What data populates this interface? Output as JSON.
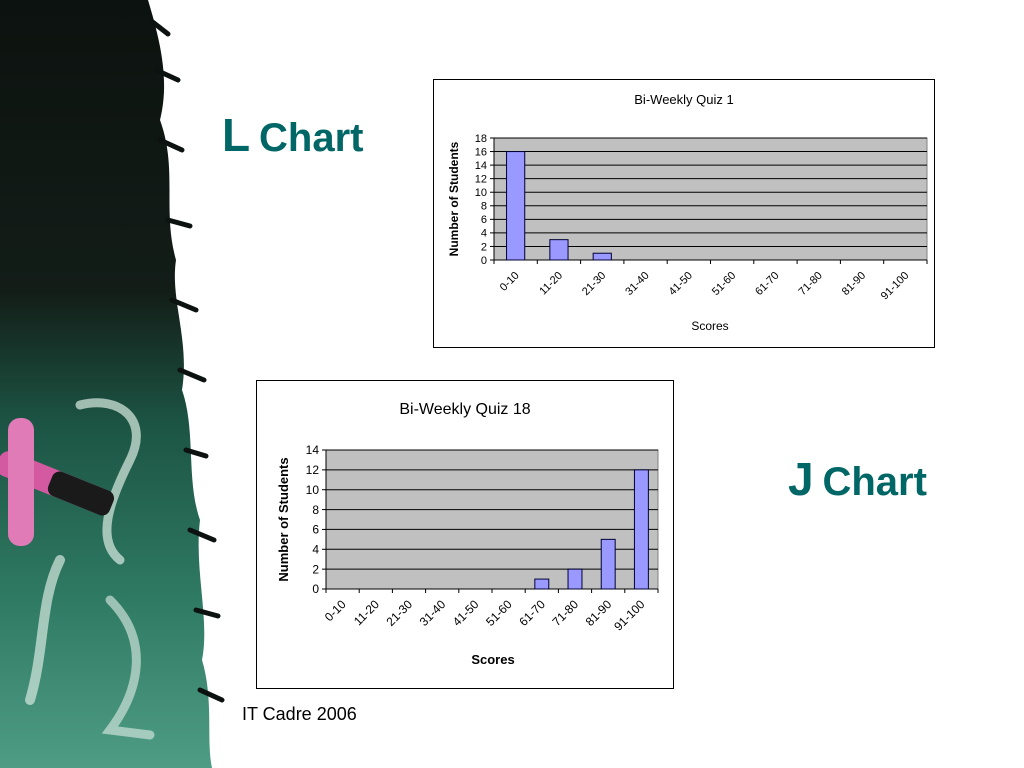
{
  "slide": {
    "title_l": {
      "letter": "L",
      "rest": "Chart"
    },
    "title_j": {
      "letter": "J",
      "rest": "Chart"
    },
    "footer": "IT Cadre 2006",
    "title_color": "#006666"
  },
  "chart_data": [
    {
      "type": "bar",
      "title": "Bi-Weekly Quiz 1",
      "xlabel": "Scores",
      "ylabel": "Number of Students",
      "categories": [
        "0-10",
        "11-20",
        "21-30",
        "31-40",
        "41-50",
        "51-60",
        "61-70",
        "71-80",
        "81-90",
        "91-100"
      ],
      "values": [
        16,
        3,
        1,
        0,
        0,
        0,
        0,
        0,
        0,
        0
      ],
      "ylim": [
        0,
        18
      ],
      "yticks": [
        0,
        2,
        4,
        6,
        8,
        10,
        12,
        14,
        16,
        18
      ],
      "grid": true,
      "legend": "none",
      "bar_color": "#9999ff",
      "plot_bg": "#c0c0c0"
    },
    {
      "type": "bar",
      "title": "Bi-Weekly Quiz 18",
      "xlabel": "Scores",
      "ylabel": "Number of Students",
      "categories": [
        "0-10",
        "11-20",
        "21-30",
        "31-40",
        "41-50",
        "51-60",
        "61-70",
        "71-80",
        "81-90",
        "91-100"
      ],
      "values": [
        0,
        0,
        0,
        0,
        0,
        0,
        1,
        2,
        5,
        12
      ],
      "ylim": [
        0,
        14
      ],
      "yticks": [
        0,
        2,
        4,
        6,
        8,
        10,
        12,
        14
      ],
      "grid": true,
      "legend": "none",
      "bar_color": "#9999ff",
      "plot_bg": "#c0c0c0"
    }
  ]
}
